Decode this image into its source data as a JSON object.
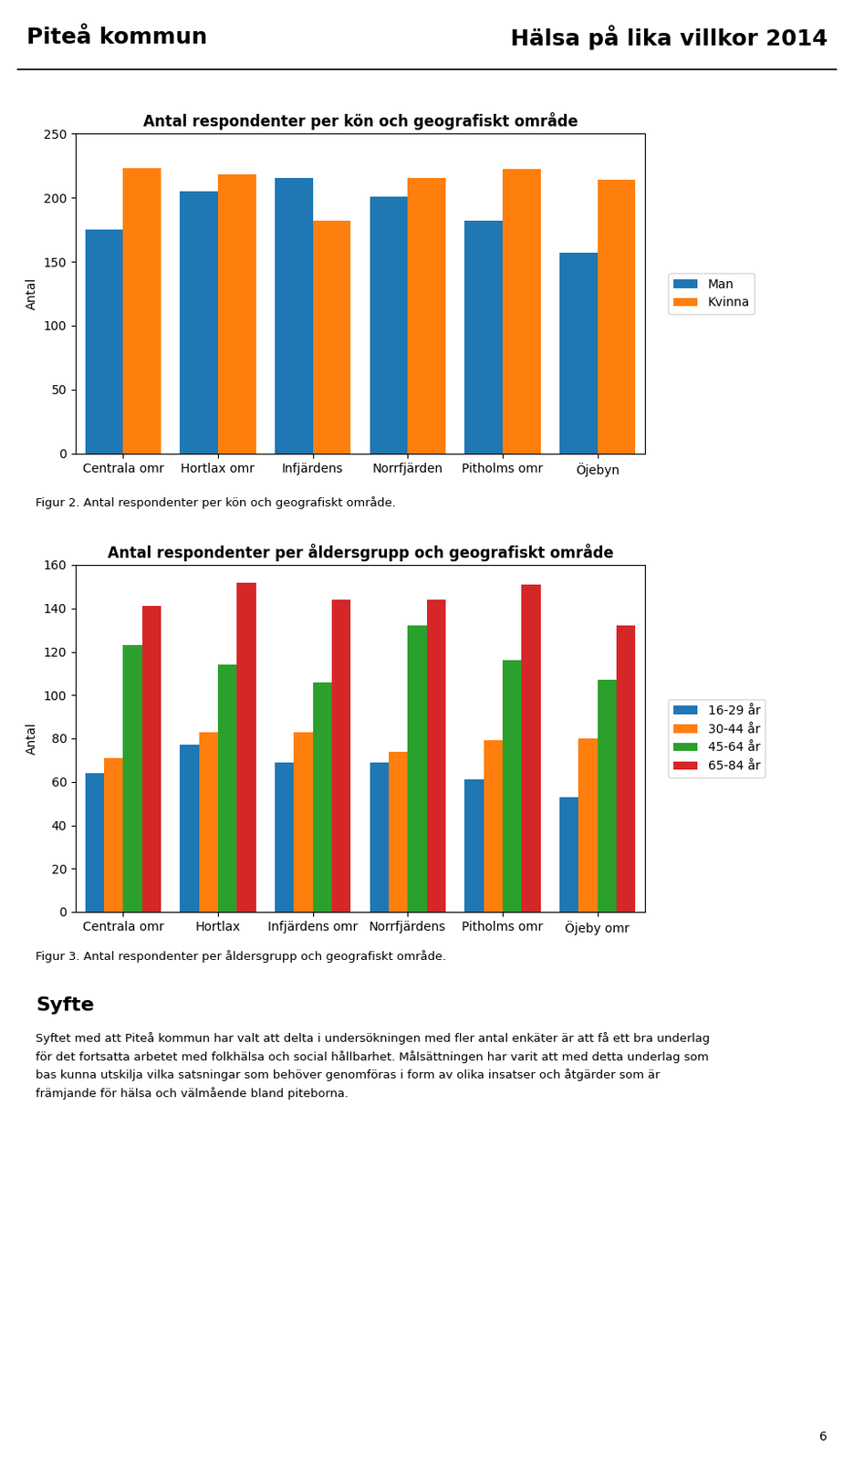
{
  "chart_data": [
    {
      "type": "bar",
      "title": "Antal respondenter per kön och geografiskt område",
      "categories": [
        "Centrala omr",
        "Hortlax omr",
        "Infjärdens",
        "Norrfjärden",
        "Pitholms omr",
        "Öjebyn"
      ],
      "series": [
        {
          "name": "Man",
          "values": [
            175,
            205,
            215,
            201,
            182,
            157
          ]
        },
        {
          "name": "Kvinna",
          "values": [
            223,
            218,
            182,
            215,
            222,
            214
          ]
        }
      ],
      "ylabel": "Antal",
      "ylim": [
        0,
        250
      ],
      "yticks": [
        0,
        50,
        100,
        150,
        200,
        250
      ],
      "legend": "right",
      "annotations": [
        "Figur 2. Antal respondenter per kön och geografiskt område."
      ]
    },
    {
      "type": "bar",
      "title": "Antal respondenter per åldersgrupp och geografiskt område",
      "categories": [
        "Centrala omr",
        "Hortlax",
        "Infjärdens omr",
        "Norrfjärdens",
        "Pitholms omr",
        "Öjeby omr"
      ],
      "series": [
        {
          "name": "16-29 år",
          "values": [
            64,
            77,
            69,
            69,
            61,
            53
          ]
        },
        {
          "name": "30-44 år",
          "values": [
            71,
            83,
            83,
            74,
            79,
            80
          ]
        },
        {
          "name": "45-64 år",
          "values": [
            123,
            114,
            106,
            132,
            116,
            107
          ]
        },
        {
          "name": "65-84 år",
          "values": [
            141,
            152,
            144,
            144,
            151,
            132
          ]
        }
      ],
      "ylabel": "Antal",
      "ylim": [
        0,
        160
      ],
      "yticks": [
        0,
        20,
        40,
        60,
        80,
        100,
        120,
        140,
        160
      ],
      "legend": "right",
      "annotations": [
        "Figur 3. Antal respondenter per åldersgrupp och geografiskt område."
      ]
    }
  ],
  "annotations": [
    "Piteå kommun",
    "Hälsa på lika villkor 2014",
    "Syfte",
    "Syftet med att Piteå kommun har valt att delta i undersökningen med fler antal enkäter är att få ett bra underlag\nför det fortsatta arbetet med folkhälsa och social hållbarhet. Målsättningen har varit att med detta underlag som\nbas kunna utskilja vilka satsningar som behöver genomföras i form av olika insatser och åtgärder som är\nfrämjande för hälsa och välmående bland piteborna.",
    "6"
  ]
}
